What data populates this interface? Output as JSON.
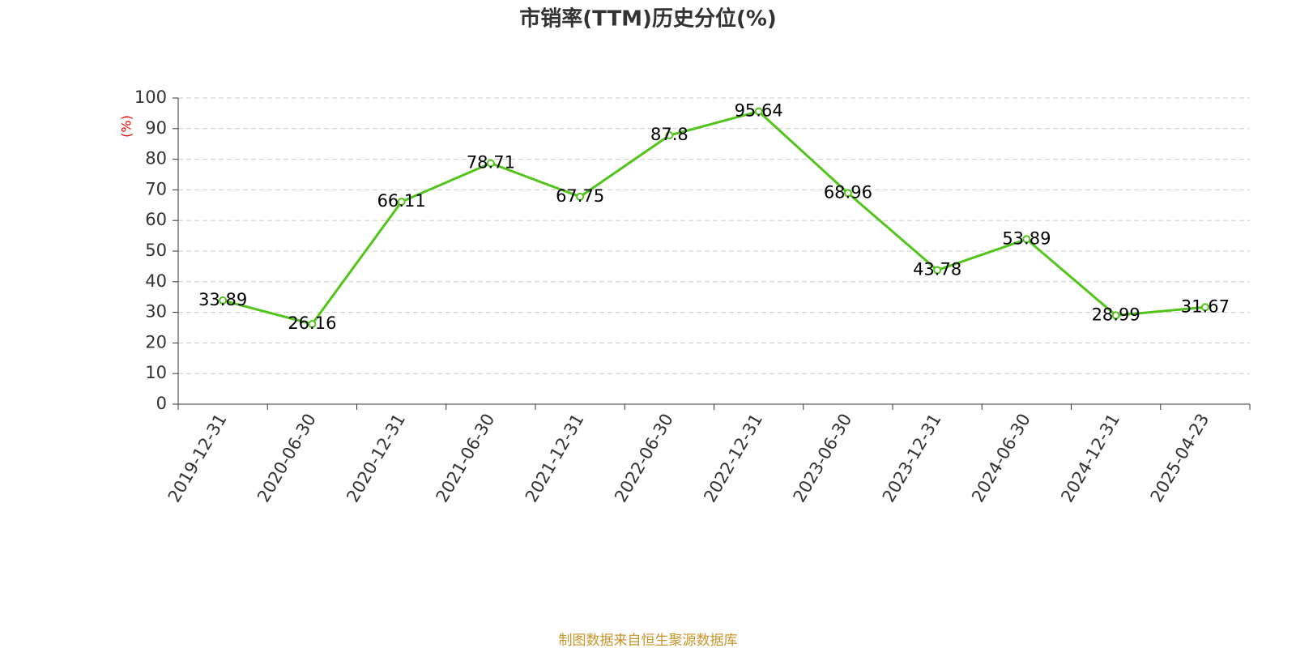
{
  "chart_data": {
    "type": "line",
    "title": "市销率(TTM)历史分位(%)",
    "y_label": "(%)",
    "source": "制图数据来自恒生聚源数据库",
    "categories": [
      "2019-12-31",
      "2020-06-30",
      "2020-12-31",
      "2021-06-30",
      "2021-12-31",
      "2022-06-30",
      "2022-12-31",
      "2023-06-30",
      "2023-12-31",
      "2024-06-30",
      "2024-12-31",
      "2025-04-23"
    ],
    "values": [
      33.89,
      26.16,
      66.11,
      78.71,
      67.75,
      87.8,
      95.64,
      68.96,
      43.78,
      53.89,
      28.99,
      31.67
    ],
    "color": "#52c41a",
    "ylim": [
      0,
      100
    ],
    "yticks": [
      0,
      10,
      20,
      30,
      40,
      50,
      60,
      70,
      80,
      90,
      100
    ],
    "grid": true
  }
}
